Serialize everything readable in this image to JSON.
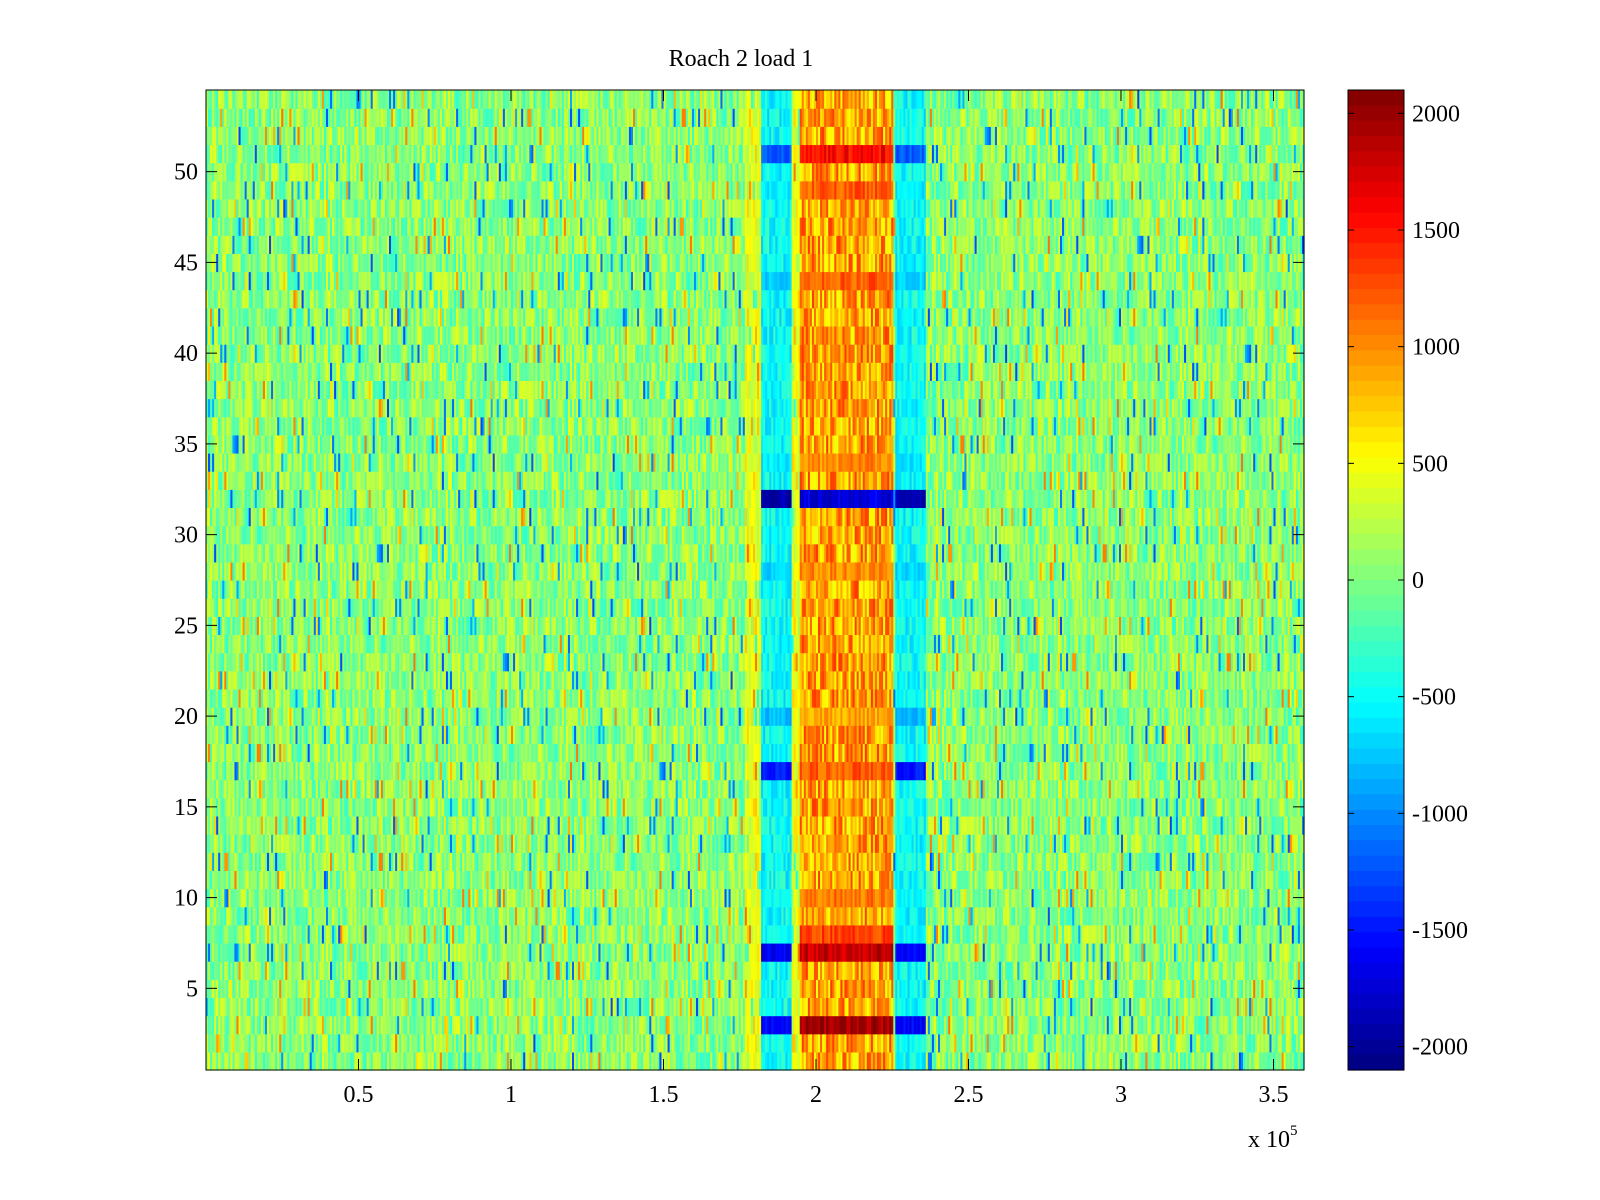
{
  "chart_data": {
    "type": "heatmap",
    "title": "Roach 2 load 1",
    "xlabel": "",
    "ylabel": "",
    "x_multiplier_base": "x 10",
    "x_multiplier_exponent": "5",
    "xlim": [
      0,
      3.6
    ],
    "ylim": [
      0.5,
      54.5
    ],
    "xticks": [
      0.5,
      1,
      1.5,
      2,
      2.5,
      3,
      3.5
    ],
    "xtick_labels": [
      "0.5",
      "1",
      "1.5",
      "2",
      "2.5",
      "3",
      "3.5"
    ],
    "yticks": [
      5,
      10,
      15,
      20,
      25,
      30,
      35,
      40,
      45,
      50
    ],
    "ytick_labels": [
      "5",
      "10",
      "15",
      "20",
      "25",
      "30",
      "35",
      "40",
      "45",
      "50"
    ],
    "rows": 54,
    "colormap": "jet",
    "clim": [
      -2100,
      2100
    ],
    "colorbar_ticks": [
      -2000,
      -1500,
      -1000,
      -500,
      0,
      500,
      1000,
      1500,
      2000
    ],
    "colorbar_tick_labels": [
      "-2000",
      "-1500",
      "-1000",
      "-500",
      "0",
      "500",
      "1000",
      "1500",
      "2000"
    ],
    "background_value_range": [
      -500,
      600
    ],
    "central_band": {
      "x_range": [
        1.95,
        2.25
      ],
      "typical_value": 900
    },
    "side_bands": [
      {
        "x_range": [
          1.82,
          1.92
        ]
      },
      {
        "x_range": [
          2.26,
          2.36
        ]
      }
    ],
    "row_features": [
      {
        "row": 3,
        "center_value": 1950,
        "side_value": -1600
      },
      {
        "row": 7,
        "center_value": 1800,
        "side_value": -1600
      },
      {
        "row": 8,
        "center_value": 1300,
        "side_value": -500
      },
      {
        "row": 10,
        "center_value": 1100,
        "side_value": -500
      },
      {
        "row": 17,
        "center_value": 1200,
        "side_value": -1500
      },
      {
        "row": 20,
        "center_value": 900,
        "side_value": -800
      },
      {
        "row": 28,
        "center_value": 1000,
        "side_value": -700
      },
      {
        "row": 32,
        "center_value": -1700,
        "side_value": -1900
      },
      {
        "row": 34,
        "center_value": 1000,
        "side_value": -600
      },
      {
        "row": 44,
        "center_value": 1200,
        "side_value": -700
      },
      {
        "row": 49,
        "center_value": 1200,
        "side_value": -600
      },
      {
        "row": 51,
        "center_value": 1550,
        "side_value": -1200
      }
    ]
  }
}
